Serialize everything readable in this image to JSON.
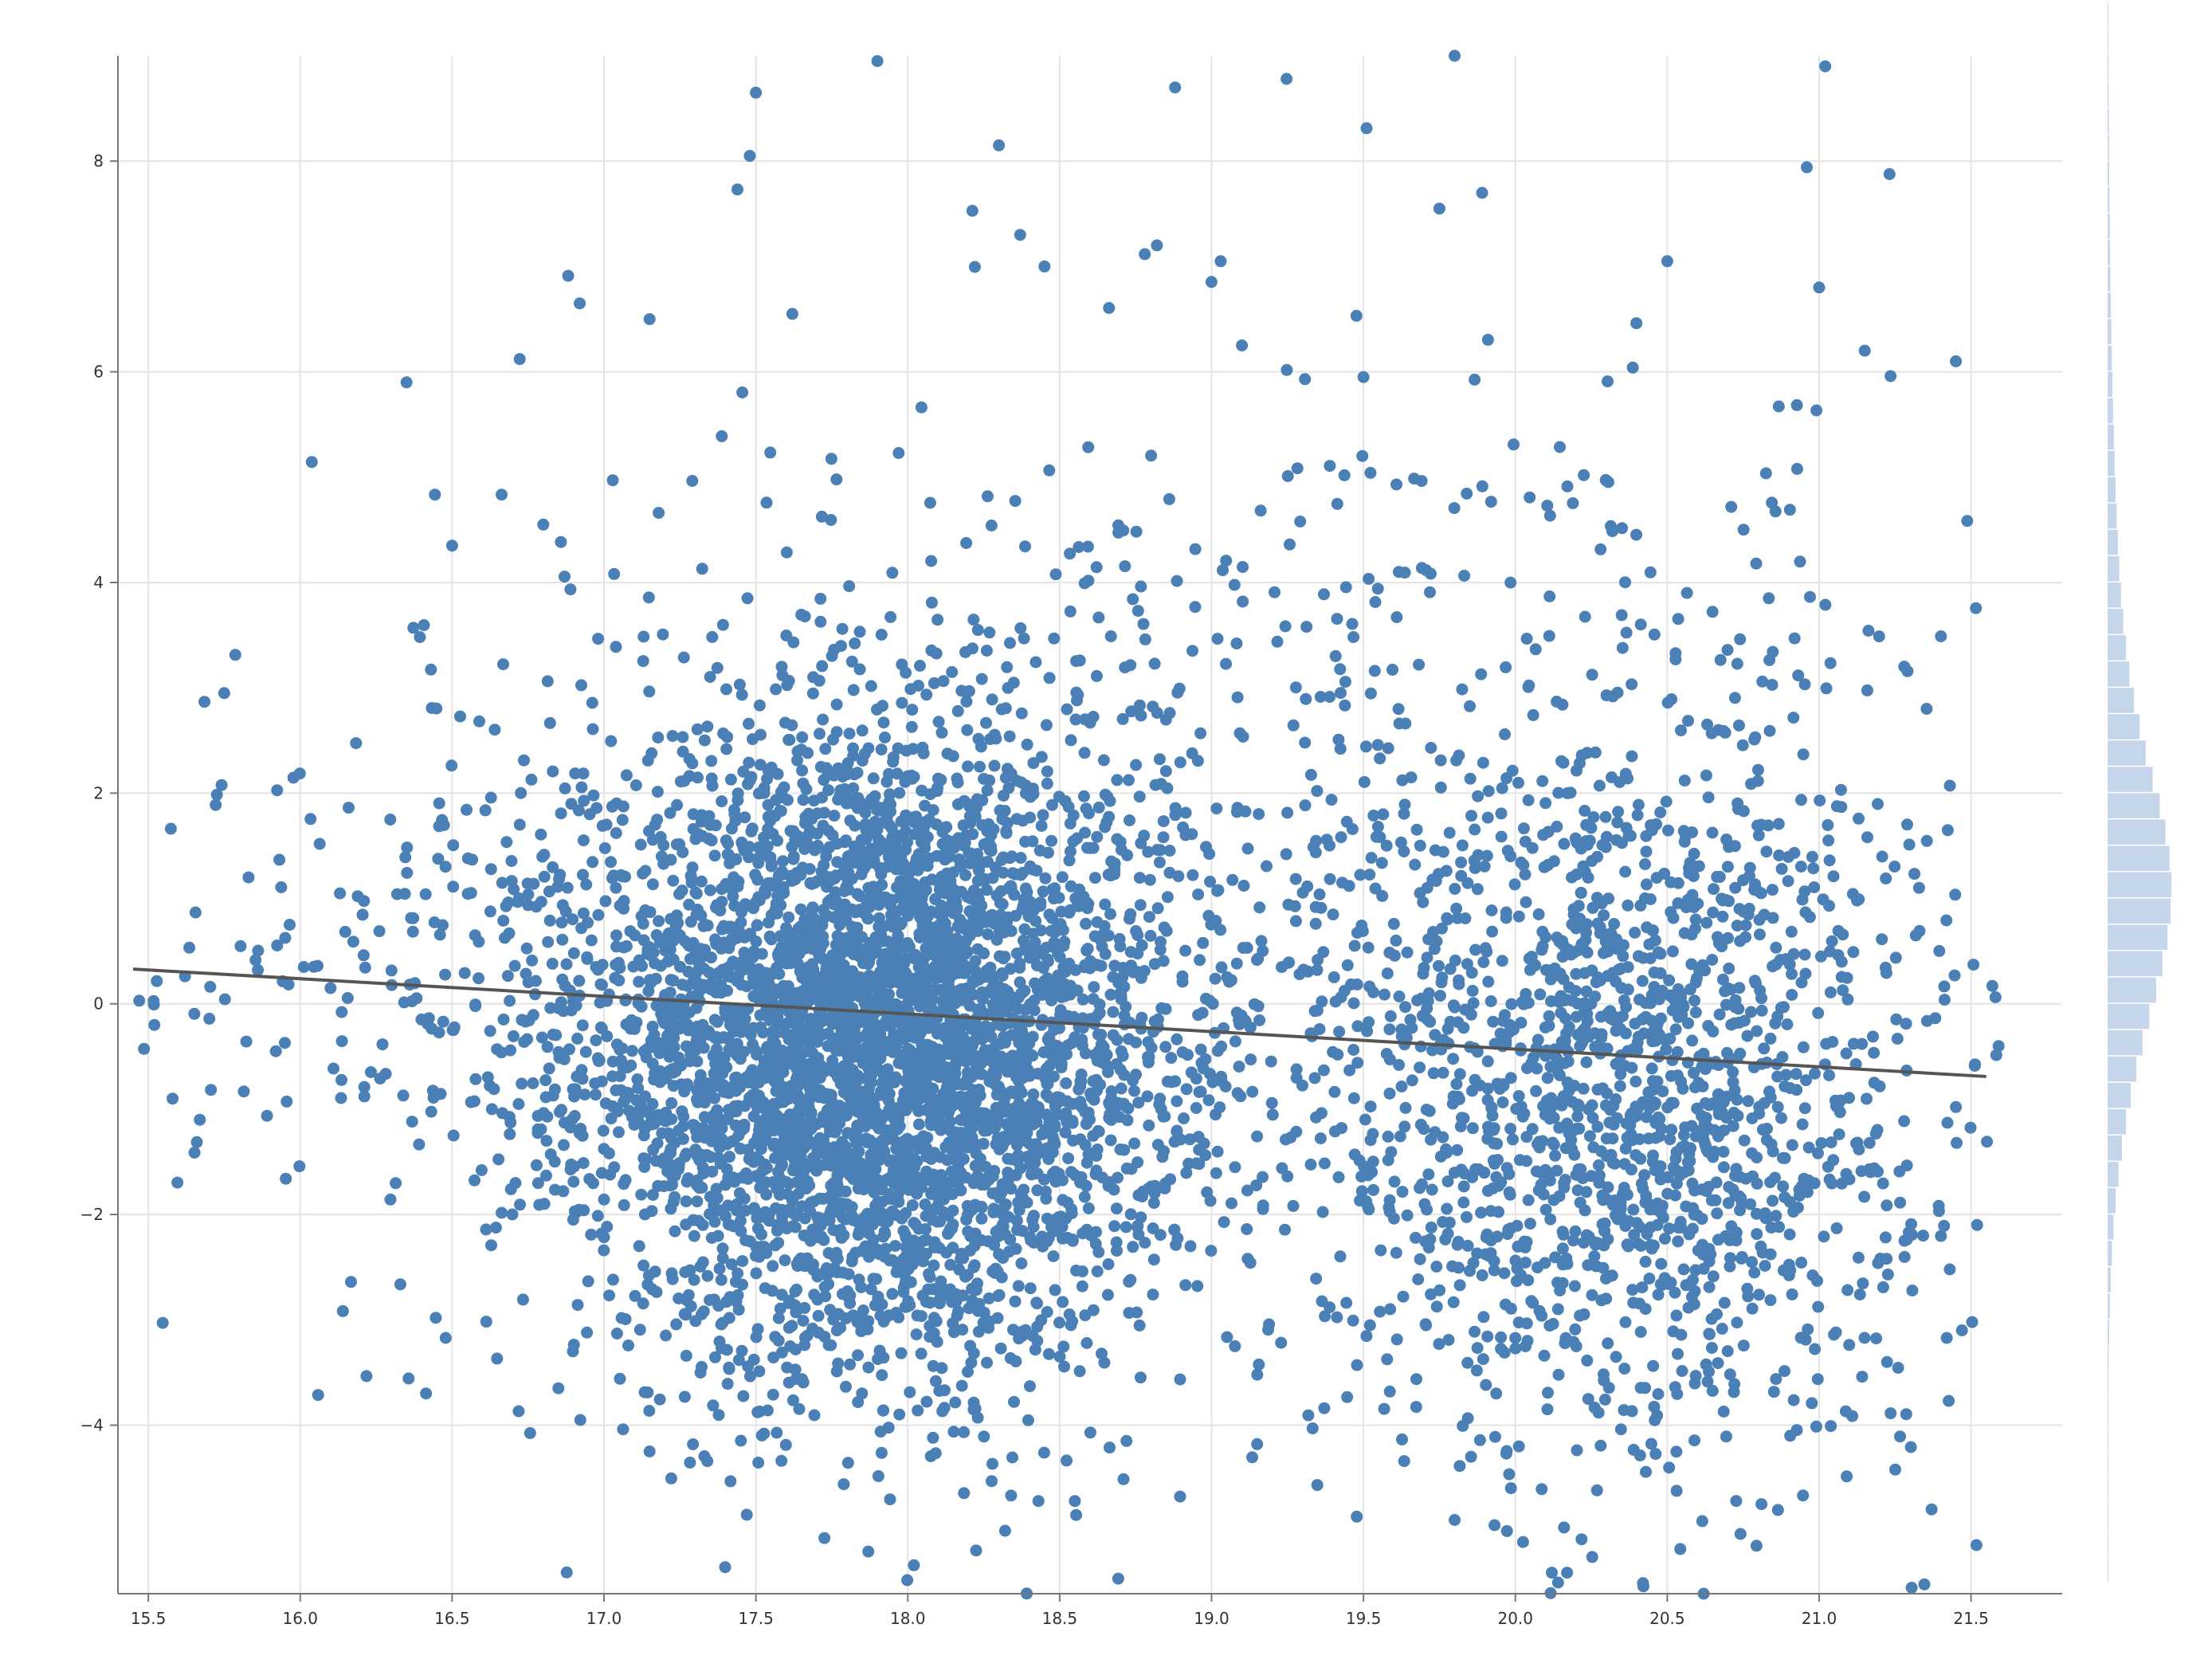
{
  "chart_data": {
    "type": "scatter",
    "title": "",
    "xlabel": "",
    "ylabel": "",
    "xlim": [
      15.4,
      21.8
    ],
    "ylim": [
      -5.6,
      9.0
    ],
    "x_ticks": [
      "15.5",
      "16.0",
      "16.5",
      "17.0",
      "17.5",
      "18.0",
      "18.5",
      "19.0",
      "19.5",
      "20.0",
      "20.5",
      "21.0",
      "21.5"
    ],
    "y_ticks": [
      "−4",
      "−2",
      "0",
      "2",
      "4",
      "6",
      "8"
    ],
    "grid": true,
    "legend": "none",
    "colors": {
      "points": "#4a80b5",
      "trend_line": "#555555",
      "histogram": "#c6d6ea",
      "grid": "#e4e4e4",
      "axis": "#777777"
    },
    "trend_line": {
      "x": [
        15.45,
        21.55
      ],
      "y": [
        0.33,
        -0.69
      ]
    },
    "clusters": [
      {
        "cx": 17.9,
        "cy": -0.5,
        "sx": 0.48,
        "sy": 1.45,
        "n": 4200
      },
      {
        "cx": 20.35,
        "cy": -0.9,
        "sx": 0.5,
        "sy": 1.7,
        "n": 1500
      },
      {
        "cx": 18.2,
        "cy": 0.8,
        "sx": 0.9,
        "sy": 2.4,
        "n": 600
      },
      {
        "cx": 20.1,
        "cy": 1.5,
        "sx": 0.7,
        "sy": 2.3,
        "n": 380
      },
      {
        "cx": 16.5,
        "cy": 0.3,
        "sx": 0.5,
        "sy": 1.3,
        "n": 220
      }
    ],
    "outliers": [
      {
        "x": 15.47,
        "y": 0.03
      },
      {
        "x": 15.52,
        "y": -0.2
      },
      {
        "x": 15.58,
        "y": -0.9
      },
      {
        "x": 15.75,
        "y": 2.95
      },
      {
        "x": 15.83,
        "y": 1.2
      },
      {
        "x": 15.92,
        "y": -0.45
      },
      {
        "x": 16.35,
        "y": 5.9
      },
      {
        "x": 16.5,
        "y": 4.35
      },
      {
        "x": 16.8,
        "y": 4.55
      },
      {
        "x": 16.85,
        "y": -3.65
      },
      {
        "x": 16.92,
        "y": 6.65
      },
      {
        "x": 17.15,
        "y": 6.5
      },
      {
        "x": 17.15,
        "y": -4.25
      },
      {
        "x": 17.48,
        "y": 8.05
      },
      {
        "x": 17.5,
        "y": 8.65
      },
      {
        "x": 17.47,
        "y": -4.85
      },
      {
        "x": 17.62,
        "y": 6.55
      },
      {
        "x": 17.9,
        "y": 8.95
      },
      {
        "x": 17.87,
        "y": -5.2
      },
      {
        "x": 18.02,
        "y": -5.33
      },
      {
        "x": 18.3,
        "y": 8.15
      },
      {
        "x": 18.37,
        "y": 7.3
      },
      {
        "x": 18.45,
        "y": 7.0
      },
      {
        "x": 18.43,
        "y": -4.72
      },
      {
        "x": 18.55,
        "y": -4.72
      },
      {
        "x": 18.72,
        "y": -4.15
      },
      {
        "x": 18.82,
        "y": 7.2
      },
      {
        "x": 18.88,
        "y": 8.7
      },
      {
        "x": 19.03,
        "y": 7.05
      },
      {
        "x": 19.1,
        "y": 6.25
      },
      {
        "x": 19.15,
        "y": -4.18
      },
      {
        "x": 19.5,
        "y": 5.95
      },
      {
        "x": 19.75,
        "y": 7.55
      },
      {
        "x": 19.8,
        "y": 9.0
      },
      {
        "x": 19.8,
        "y": -4.9
      },
      {
        "x": 20.12,
        "y": -5.4
      },
      {
        "x": 20.17,
        "y": -5.4
      },
      {
        "x": 20.42,
        "y": -5.5
      },
      {
        "x": 20.62,
        "y": -5.6
      },
      {
        "x": 20.5,
        "y": 7.05
      },
      {
        "x": 20.81,
        "y": -4.75
      },
      {
        "x": 21.0,
        "y": 6.8
      },
      {
        "x": 21.02,
        "y": 8.9
      },
      {
        "x": 21.15,
        "y": 6.2
      },
      {
        "x": 21.37,
        "y": -4.8
      },
      {
        "x": 21.45,
        "y": 6.1
      },
      {
        "x": 21.47,
        "y": -3.1
      },
      {
        "x": 21.52,
        "y": -2.1
      },
      {
        "x": 21.57,
        "y": 0.17
      },
      {
        "x": 21.45,
        "y": -0.98
      }
    ],
    "histogram": {
      "orientation": "horizontal",
      "bin_width": 0.25,
      "bins_from": -5.5,
      "counts": [
        1,
        1,
        1,
        2,
        2,
        3,
        4,
        5,
        7,
        10,
        14,
        20,
        28,
        38,
        52,
        70,
        92,
        118,
        148,
        185,
        225,
        268,
        312,
        352,
        385,
        405,
        410,
        398,
        372,
        335,
        290,
        245,
        205,
        170,
        140,
        118,
        100,
        86,
        75,
        66,
        58,
        51,
        45,
        40,
        35,
        31,
        27,
        24,
        21,
        18,
        16,
        14,
        12,
        10,
        9,
        8,
        7,
        6,
        5,
        5
      ]
    }
  }
}
